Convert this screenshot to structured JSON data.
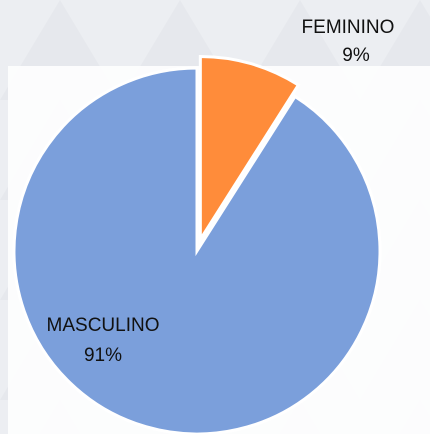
{
  "chart_data": {
    "type": "pie",
    "categories": [
      "FEMININO",
      "MASCULINO"
    ],
    "values": [
      9,
      91
    ],
    "value_labels": [
      "9%",
      "91%"
    ],
    "colors": [
      "#ff8c3a",
      "#7b9fdb"
    ],
    "exploded": [
      true,
      false
    ]
  }
}
